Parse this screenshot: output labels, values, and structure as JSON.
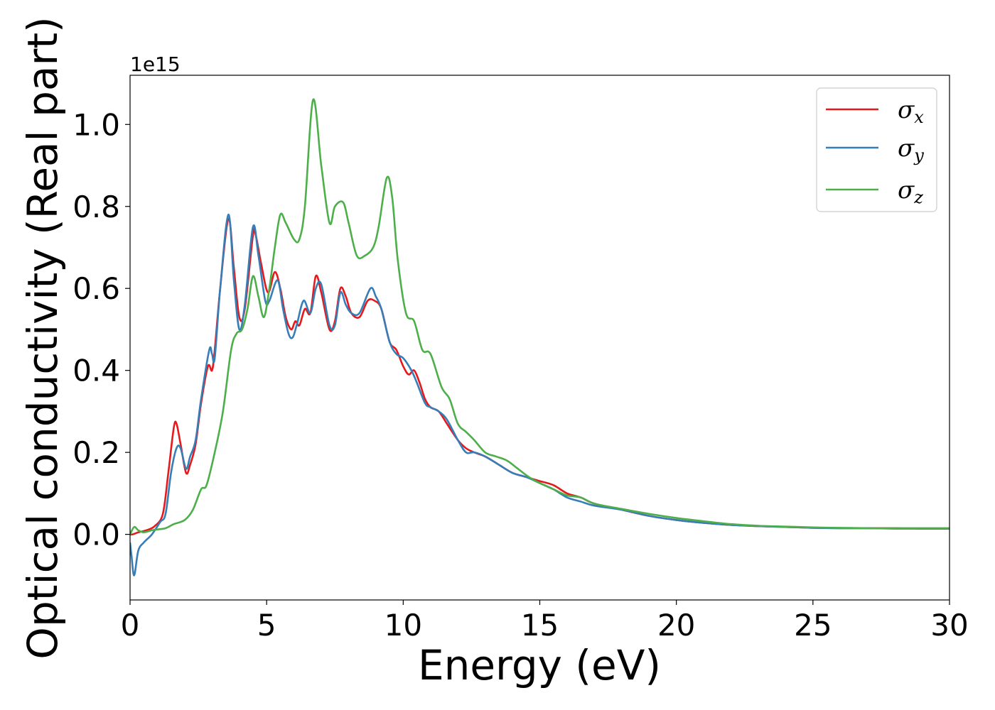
{
  "chart_data": {
    "type": "line",
    "title": "",
    "xlabel": "Energy (eV)",
    "ylabel": "Optical conductivity (Real part)",
    "y_offset_text": "1e15",
    "xlim": [
      0,
      30
    ],
    "ylim": [
      -0.16,
      1.12
    ],
    "x_ticks": [
      0,
      5,
      10,
      15,
      20,
      25,
      30
    ],
    "x_tick_labels": [
      "0",
      "5",
      "10",
      "15",
      "20",
      "25",
      "30"
    ],
    "y_ticks": [
      0.0,
      0.2,
      0.4,
      0.6,
      0.8,
      1.0
    ],
    "y_tick_labels": [
      "0.0",
      "0.2",
      "0.4",
      "0.6",
      "0.8",
      "1.0"
    ],
    "grid": false,
    "legend_position": "top-right",
    "series": [
      {
        "name": "σx",
        "legend_symbol": "σ",
        "legend_subscript": "x",
        "color": "#e41a1c",
        "x": [
          0,
          0.1,
          0.3,
          0.6,
          0.9,
          1.2,
          1.4,
          1.6,
          1.7,
          1.85,
          2.05,
          2.2,
          2.4,
          2.6,
          2.85,
          3.0,
          3.1,
          3.3,
          3.6,
          3.8,
          4.0,
          4.2,
          4.5,
          4.6,
          4.8,
          5.05,
          5.3,
          5.5,
          5.7,
          5.9,
          6.05,
          6.2,
          6.4,
          6.6,
          6.8,
          7.0,
          7.3,
          7.5,
          7.7,
          7.9,
          8.1,
          8.4,
          8.7,
          8.95,
          9.2,
          9.5,
          9.75,
          10.0,
          10.2,
          10.4,
          10.6,
          10.8,
          11.0,
          11.3,
          11.6,
          12.0,
          12.3,
          12.6,
          13.0,
          13.5,
          14.0,
          14.5,
          15.0,
          15.5,
          16.0,
          16.5,
          17.0,
          18.0,
          19.0,
          20.0,
          21.0,
          22.0,
          23.0,
          24.0,
          25.0,
          26.0,
          27.0,
          28.0,
          29.0,
          30.0
        ],
        "y": [
          0.0,
          0.0,
          0.005,
          0.01,
          0.02,
          0.05,
          0.15,
          0.26,
          0.27,
          0.22,
          0.15,
          0.17,
          0.22,
          0.32,
          0.41,
          0.4,
          0.45,
          0.6,
          0.77,
          0.65,
          0.53,
          0.55,
          0.73,
          0.73,
          0.66,
          0.59,
          0.64,
          0.6,
          0.53,
          0.5,
          0.52,
          0.51,
          0.55,
          0.54,
          0.63,
          0.59,
          0.5,
          0.52,
          0.6,
          0.58,
          0.54,
          0.53,
          0.57,
          0.57,
          0.55,
          0.47,
          0.45,
          0.41,
          0.39,
          0.4,
          0.37,
          0.33,
          0.31,
          0.3,
          0.27,
          0.23,
          0.21,
          0.2,
          0.19,
          0.17,
          0.15,
          0.14,
          0.13,
          0.12,
          0.1,
          0.09,
          0.075,
          0.06,
          0.045,
          0.035,
          0.028,
          0.023,
          0.02,
          0.018,
          0.016,
          0.015,
          0.015,
          0.015,
          0.014,
          0.014
        ]
      },
      {
        "name": "σy",
        "legend_symbol": "σ",
        "legend_subscript": "y",
        "color": "#377eb8",
        "x": [
          0,
          0.05,
          0.15,
          0.3,
          0.5,
          0.8,
          1.1,
          1.3,
          1.5,
          1.7,
          1.85,
          2.05,
          2.2,
          2.4,
          2.6,
          2.9,
          3.0,
          3.1,
          3.3,
          3.6,
          3.8,
          4.0,
          4.2,
          4.5,
          4.7,
          4.95,
          5.1,
          5.4,
          5.6,
          5.8,
          5.95,
          6.1,
          6.35,
          6.6,
          6.8,
          7.0,
          7.3,
          7.5,
          7.7,
          7.9,
          8.1,
          8.4,
          8.8,
          9.0,
          9.2,
          9.5,
          9.75,
          10.0,
          10.3,
          10.5,
          10.8,
          11.0,
          11.3,
          11.6,
          12.0,
          12.3,
          12.6,
          13.0,
          13.5,
          14.0,
          14.5,
          15.0,
          15.5,
          16.0,
          16.5,
          17.0,
          18.0,
          19.0,
          20.0,
          21.0,
          22.0,
          23.0,
          24.0,
          25.0,
          26.0,
          27.0,
          28.0,
          29.0,
          30.0
        ],
        "y": [
          -0.02,
          -0.05,
          -0.1,
          -0.04,
          -0.02,
          0.0,
          0.03,
          0.05,
          0.15,
          0.21,
          0.21,
          0.16,
          0.19,
          0.23,
          0.33,
          0.45,
          0.44,
          0.43,
          0.6,
          0.78,
          0.62,
          0.5,
          0.56,
          0.75,
          0.68,
          0.57,
          0.57,
          0.62,
          0.55,
          0.49,
          0.48,
          0.51,
          0.57,
          0.54,
          0.6,
          0.61,
          0.51,
          0.51,
          0.59,
          0.56,
          0.54,
          0.54,
          0.6,
          0.58,
          0.55,
          0.47,
          0.44,
          0.43,
          0.4,
          0.37,
          0.32,
          0.31,
          0.3,
          0.28,
          0.23,
          0.2,
          0.2,
          0.19,
          0.17,
          0.15,
          0.14,
          0.125,
          0.11,
          0.09,
          0.08,
          0.07,
          0.06,
          0.045,
          0.035,
          0.028,
          0.023,
          0.02,
          0.018,
          0.016,
          0.015,
          0.015,
          0.014,
          0.014,
          0.014
        ]
      },
      {
        "name": "σz",
        "legend_symbol": "σ",
        "legend_subscript": "z",
        "color": "#4daf4a",
        "x": [
          0,
          0.15,
          0.3,
          0.5,
          0.8,
          1.0,
          1.3,
          1.6,
          2.0,
          2.3,
          2.6,
          2.8,
          3.1,
          3.4,
          3.7,
          3.9,
          4.1,
          4.3,
          4.5,
          4.7,
          4.9,
          5.1,
          5.3,
          5.5,
          5.7,
          6.0,
          6.2,
          6.4,
          6.7,
          7.0,
          7.3,
          7.5,
          7.8,
          8.0,
          8.3,
          8.6,
          8.9,
          9.1,
          9.4,
          9.6,
          9.8,
          10.1,
          10.4,
          10.7,
          11.0,
          11.4,
          11.7,
          12.0,
          12.3,
          12.6,
          13.0,
          13.4,
          13.8,
          14.2,
          14.6,
          15.0,
          15.5,
          16.0,
          16.5,
          17.0,
          18.0,
          19.0,
          20.0,
          21.0,
          22.0,
          23.0,
          24.0,
          25.0,
          26.0,
          27.0,
          28.0,
          29.0,
          30.0
        ],
        "y": [
          0.0,
          0.018,
          0.01,
          0.005,
          0.01,
          0.012,
          0.015,
          0.025,
          0.035,
          0.06,
          0.11,
          0.12,
          0.2,
          0.3,
          0.45,
          0.49,
          0.5,
          0.55,
          0.63,
          0.58,
          0.53,
          0.6,
          0.7,
          0.78,
          0.76,
          0.72,
          0.72,
          0.8,
          1.06,
          0.9,
          0.76,
          0.8,
          0.81,
          0.76,
          0.68,
          0.68,
          0.7,
          0.75,
          0.87,
          0.82,
          0.67,
          0.54,
          0.52,
          0.45,
          0.44,
          0.36,
          0.33,
          0.27,
          0.25,
          0.23,
          0.2,
          0.19,
          0.18,
          0.16,
          0.14,
          0.125,
          0.11,
          0.095,
          0.09,
          0.075,
          0.062,
          0.05,
          0.04,
          0.032,
          0.025,
          0.021,
          0.019,
          0.017,
          0.016,
          0.015,
          0.015,
          0.015,
          0.015
        ]
      }
    ]
  }
}
